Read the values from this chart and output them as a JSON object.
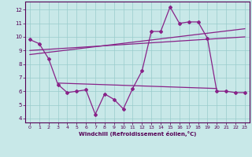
{
  "xlabel": "Windchill (Refroidissement éolien,°C)",
  "background_color": "#c8e8e8",
  "grid_color": "#99cccc",
  "line_color": "#882288",
  "x_ticks": [
    0,
    1,
    2,
    3,
    4,
    5,
    6,
    7,
    8,
    9,
    10,
    11,
    12,
    13,
    14,
    15,
    16,
    17,
    18,
    19,
    20,
    21,
    22,
    23
  ],
  "y_ticks": [
    4,
    5,
    6,
    7,
    8,
    9,
    10,
    11,
    12
  ],
  "ylim": [
    3.7,
    12.6
  ],
  "xlim": [
    -0.5,
    23.5
  ],
  "line_main_x": [
    0,
    1,
    2,
    3,
    4,
    5,
    6,
    7,
    8,
    9,
    10,
    11,
    12,
    13,
    14,
    15,
    16,
    17,
    18,
    19,
    20,
    21,
    22,
    23
  ],
  "line_main_y": [
    9.8,
    9.5,
    8.4,
    6.5,
    5.9,
    6.0,
    6.1,
    4.3,
    5.8,
    5.4,
    4.7,
    6.2,
    7.5,
    10.4,
    10.4,
    12.2,
    11.0,
    11.1,
    11.1,
    9.9,
    6.0,
    6.0,
    5.9,
    5.9
  ],
  "trend1_x": [
    0,
    23
  ],
  "trend1_y": [
    8.7,
    10.6
  ],
  "trend2_x": [
    0,
    23
  ],
  "trend2_y": [
    9.0,
    10.0
  ],
  "trend3_x": [
    3,
    20
  ],
  "trend3_y": [
    6.6,
    6.2
  ]
}
